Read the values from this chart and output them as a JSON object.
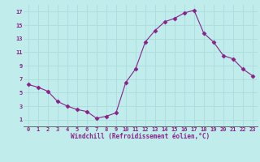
{
  "x": [
    0,
    1,
    2,
    3,
    4,
    5,
    6,
    7,
    8,
    9,
    10,
    11,
    12,
    13,
    14,
    15,
    16,
    17,
    18,
    19,
    20,
    21,
    22,
    23
  ],
  "y": [
    6.2,
    5.8,
    5.2,
    3.7,
    3.0,
    2.5,
    2.2,
    1.2,
    1.5,
    2.0,
    6.5,
    8.5,
    12.5,
    14.2,
    15.5,
    16.0,
    16.8,
    17.2,
    13.8,
    12.5,
    10.5,
    10.0,
    8.5,
    7.5
  ],
  "line_color": "#882288",
  "marker": "D",
  "marker_size": 2.5,
  "bg_color": "#c0ecec",
  "grid_color": "#aadddd",
  "xlabel": "Windchill (Refroidissement éolien,°C)",
  "xlabel_color": "#882288",
  "tick_color": "#882288",
  "ylim": [
    0,
    18
  ],
  "xlim": [
    -0.5,
    23.5
  ],
  "yticks": [
    1,
    3,
    5,
    7,
    9,
    11,
    13,
    15,
    17
  ],
  "xticks": [
    0,
    1,
    2,
    3,
    4,
    5,
    6,
    7,
    8,
    9,
    10,
    11,
    12,
    13,
    14,
    15,
    16,
    17,
    18,
    19,
    20,
    21,
    22,
    23
  ],
  "tick_fontsize": 5.0,
  "xlabel_fontsize": 5.5
}
